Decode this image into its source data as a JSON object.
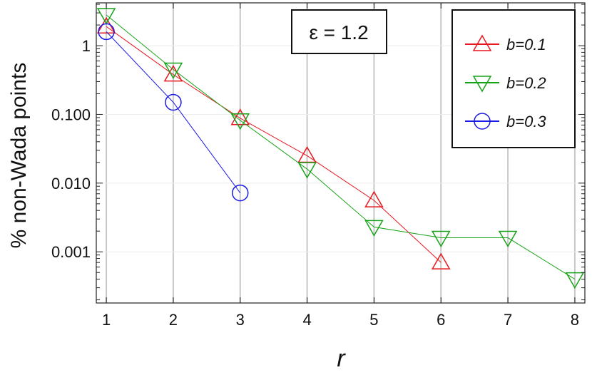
{
  "chart_data": {
    "type": "line",
    "xlabel": "r",
    "ylabel": "% non-Wada points",
    "yscale": "log",
    "xlim": [
      0.85,
      8.15
    ],
    "ylim": [
      0.00018,
      4.2
    ],
    "xticks": [
      1,
      2,
      3,
      4,
      5,
      6,
      7,
      8
    ],
    "xtick_labels": [
      "1",
      "2",
      "3",
      "4",
      "5",
      "6",
      "7",
      "8"
    ],
    "yticks": [
      1,
      0.1,
      0.01,
      0.001
    ],
    "ytick_labels": [
      "1",
      "0.100",
      "0.010",
      "0.001"
    ],
    "grid": "vertical",
    "legend_position": "top-right",
    "annotation": "ε = 1.2",
    "series": [
      {
        "name": "b=0.1",
        "color": "#e8171f",
        "marker": "triangle-up",
        "x": [
          1,
          2,
          3,
          4,
          5,
          6
        ],
        "y": [
          1.9,
          0.38,
          0.088,
          0.025,
          0.0056,
          0.0007
        ]
      },
      {
        "name": "b=0.2",
        "color": "#17a317",
        "marker": "triangle-down",
        "x": [
          1,
          2,
          3,
          4,
          5,
          6,
          7,
          8
        ],
        "y": [
          2.8,
          0.45,
          0.082,
          0.016,
          0.0023,
          0.0016,
          0.0016,
          0.0004
        ]
      },
      {
        "name": "b=0.3",
        "color": "#1a1ae6",
        "marker": "circle",
        "x": [
          1,
          2,
          3
        ],
        "y": [
          1.6,
          0.15,
          0.0072
        ]
      }
    ]
  }
}
